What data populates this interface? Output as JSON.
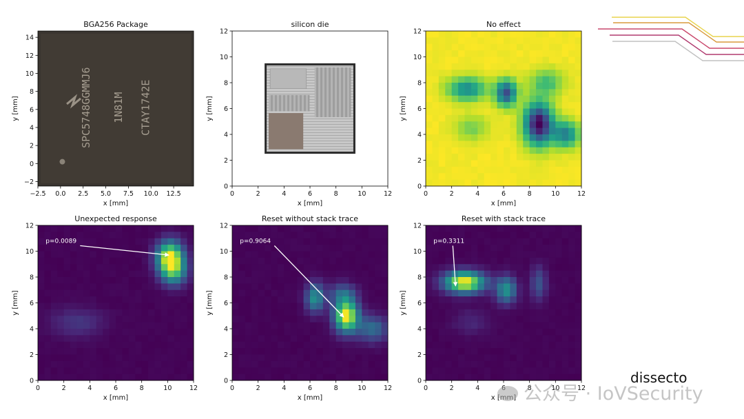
{
  "colors": {
    "accent_lines": [
      "#e8d44d",
      "#d99a3c",
      "#c9476b",
      "#b03a6f",
      "#c0c0c0"
    ]
  },
  "brand": "dissecto",
  "watermark": "公众号 · IoVSecurity",
  "chart_data": [
    {
      "type": "image",
      "title": "BGA256 Package",
      "xlabel": "x [mm]",
      "ylabel": "y [mm]",
      "xlim": [
        -2.5,
        14.7
      ],
      "ylim": [
        -2.5,
        14.7
      ],
      "xticks": [
        "−2.5",
        "0.0",
        "2.5",
        "5.0",
        "7.5",
        "10.0",
        "12.5"
      ],
      "yticks": [
        "−2",
        "0",
        "2",
        "4",
        "6",
        "8",
        "10",
        "12",
        "14"
      ],
      "marking_lines": [
        "SPC5748GGMMJ6",
        "1N81M",
        "CTAY1742E"
      ]
    },
    {
      "type": "image",
      "title": "silicon die",
      "xlabel": "x [mm]",
      "ylabel": "y [mm]",
      "xlim": [
        0,
        12
      ],
      "ylim": [
        0,
        12
      ],
      "xticks": [
        "0",
        "2",
        "4",
        "6",
        "8",
        "10",
        "12"
      ],
      "yticks": [
        "0",
        "2",
        "4",
        "6",
        "8",
        "10",
        "12"
      ],
      "die_extent": [
        2.5,
        9.5,
        2.5,
        9.5
      ]
    },
    {
      "type": "heatmap",
      "title": "No effect",
      "xlabel": "x [mm]",
      "ylabel": "y [mm]",
      "xlim": [
        0,
        12
      ],
      "ylim": [
        0,
        12
      ],
      "colormap": "viridis",
      "base": 1.0,
      "xticks": [
        "0",
        "2",
        "4",
        "6",
        "8",
        "10",
        "12"
      ],
      "yticks": [
        "0",
        "2",
        "4",
        "6",
        "8",
        "10",
        "12"
      ],
      "blobs": [
        {
          "x": 3.2,
          "y": 7.5,
          "rx": 1.5,
          "ry": 0.9,
          "v": -0.5
        },
        {
          "x": 6.2,
          "y": 7.2,
          "rx": 0.8,
          "ry": 1.0,
          "v": -0.75
        },
        {
          "x": 8.7,
          "y": 4.8,
          "rx": 1.1,
          "ry": 1.6,
          "v": -1.0
        },
        {
          "x": 10.8,
          "y": 4.0,
          "rx": 1.0,
          "ry": 1.0,
          "v": -0.55
        },
        {
          "x": 3.5,
          "y": 4.5,
          "rx": 1.3,
          "ry": 1.0,
          "v": -0.2
        },
        {
          "x": 9.3,
          "y": 8.0,
          "rx": 1.3,
          "ry": 1.0,
          "v": -0.3
        }
      ]
    },
    {
      "type": "heatmap",
      "title": "Unexpected response",
      "xlabel": "x [mm]",
      "ylabel": "y [mm]",
      "xlim": [
        0,
        12
      ],
      "ylim": [
        0,
        12
      ],
      "colormap": "viridis",
      "base": 0.0,
      "xticks": [
        "0",
        "2",
        "4",
        "6",
        "8",
        "10",
        "12"
      ],
      "yticks": [
        "0",
        "2",
        "4",
        "6",
        "8",
        "10",
        "12"
      ],
      "annotation": {
        "text": "p=0.0089",
        "text_xy": [
          0.6,
          10.8
        ],
        "arrow_to": [
          10.1,
          9.7
        ]
      },
      "blobs": [
        {
          "x": 10.2,
          "y": 9.5,
          "rx": 1.0,
          "ry": 1.2,
          "v": 1.0
        },
        {
          "x": 10.5,
          "y": 8.3,
          "rx": 1.0,
          "ry": 1.0,
          "v": 0.45
        },
        {
          "x": 3.0,
          "y": 4.5,
          "rx": 2.0,
          "ry": 1.1,
          "v": 0.15
        }
      ]
    },
    {
      "type": "heatmap",
      "title": "Reset without stack trace",
      "xlabel": "x [mm]",
      "ylabel": "y [mm]",
      "xlim": [
        0,
        12
      ],
      "ylim": [
        0,
        12
      ],
      "colormap": "viridis",
      "base": 0.0,
      "xticks": [
        "0",
        "2",
        "4",
        "6",
        "8",
        "10",
        "12"
      ],
      "yticks": [
        "0",
        "2",
        "4",
        "6",
        "8",
        "10",
        "12"
      ],
      "annotation": {
        "text": "p=0.9064",
        "text_xy": [
          0.6,
          10.8
        ],
        "arrow_to": [
          8.6,
          4.9
        ]
      },
      "blobs": [
        {
          "x": 8.8,
          "y": 5.0,
          "rx": 0.9,
          "ry": 1.2,
          "v": 1.0
        },
        {
          "x": 6.4,
          "y": 6.4,
          "rx": 0.7,
          "ry": 1.1,
          "v": 0.5
        },
        {
          "x": 10.8,
          "y": 4.0,
          "rx": 1.2,
          "ry": 1.0,
          "v": 0.35
        },
        {
          "x": 8.5,
          "y": 6.7,
          "rx": 1.0,
          "ry": 0.8,
          "v": 0.3
        }
      ]
    },
    {
      "type": "heatmap",
      "title": "Reset with stack trace",
      "xlabel": "x [mm]",
      "ylabel": "y [mm]",
      "xlim": [
        0,
        12
      ],
      "ylim": [
        0,
        12
      ],
      "colormap": "viridis",
      "base": 0.0,
      "xticks": [
        "0",
        "2",
        "4",
        "6",
        "8",
        "10",
        "12"
      ],
      "yticks": [
        "0",
        "2",
        "4",
        "6",
        "8",
        "10",
        "12"
      ],
      "annotation": {
        "text": "p=0.3311",
        "text_xy": [
          0.6,
          10.8
        ],
        "arrow_to": [
          2.3,
          7.3
        ]
      },
      "blobs": [
        {
          "x": 3.0,
          "y": 7.6,
          "rx": 1.5,
          "ry": 0.8,
          "v": 1.0
        },
        {
          "x": 6.2,
          "y": 7.0,
          "rx": 0.8,
          "ry": 1.0,
          "v": 0.5
        },
        {
          "x": 8.7,
          "y": 7.5,
          "rx": 0.6,
          "ry": 1.3,
          "v": 0.25
        },
        {
          "x": 3.5,
          "y": 4.5,
          "rx": 1.4,
          "ry": 1.0,
          "v": 0.1
        }
      ]
    }
  ]
}
